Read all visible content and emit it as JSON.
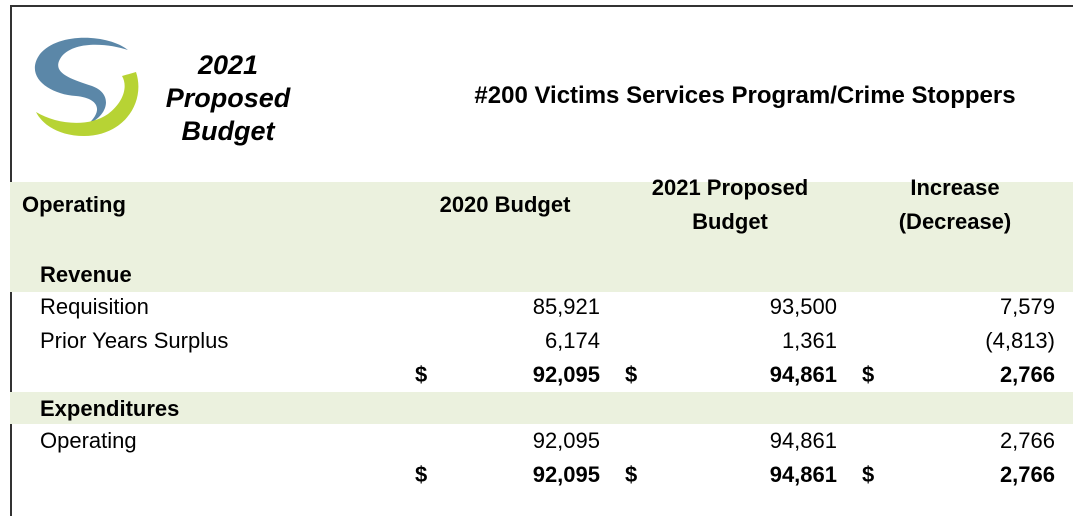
{
  "header": {
    "logo_text": [
      "2021",
      "Proposed",
      "Budget"
    ],
    "title": "#200 Victims Services Program/Crime Stoppers"
  },
  "table": {
    "columns": [
      [
        "Operating"
      ],
      [
        "2020 Budget"
      ],
      [
        "2021 Proposed",
        "Budget"
      ],
      [
        "Increase",
        "(Decrease)"
      ]
    ],
    "sections": [
      {
        "name": "Revenue",
        "rows": [
          {
            "label": "Requisition",
            "values": [
              "85,921",
              "93,500",
              "7,579"
            ]
          },
          {
            "label": "Prior Years Surplus",
            "values": [
              "6,174",
              "1,361",
              "(4,813)"
            ]
          }
        ],
        "total": [
          {
            "symbol": "$",
            "amount": "92,095"
          },
          {
            "symbol": "$",
            "amount": "94,861"
          },
          {
            "symbol": "$",
            "amount": "2,766"
          }
        ]
      },
      {
        "name": "Expenditures",
        "rows": [
          {
            "label": "Operating",
            "values": [
              "92,095",
              "94,861",
              "2,766"
            ]
          }
        ],
        "total": [
          {
            "symbol": "$",
            "amount": "92,095"
          },
          {
            "symbol": "$",
            "amount": "94,861"
          },
          {
            "symbol": "$",
            "amount": "2,766"
          }
        ]
      }
    ]
  }
}
